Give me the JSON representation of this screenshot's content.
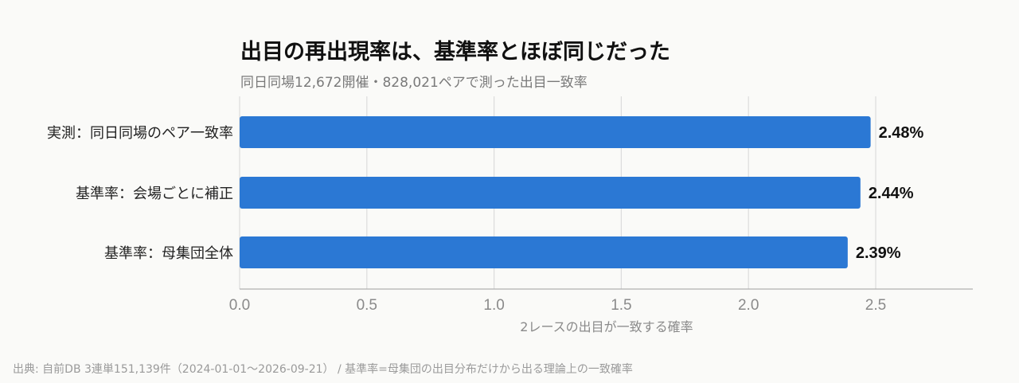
{
  "colors": {
    "bar": "#2b78d4",
    "background": "#fafaf8",
    "grid": "#dcdcdc"
  },
  "source": "出典: 自前DB 3連単151,139件（2024-01-01〜2026-09-21） / 基準率=母集団の出目分布だけから出る理論上の一致確率",
  "chart_data": {
    "type": "bar",
    "orientation": "horizontal",
    "title": "出目の再出現率は、基準率とほぼ同じだった",
    "subtitle": "同日同場12,672開催・828,021ペアで測った出目一致率",
    "xlabel": "2レースの出目が一致する確率",
    "ylabel": "",
    "categories": [
      "実測：同日同場のペア一致率",
      "基準率：会場ごとに補正",
      "基準率：母集団全体"
    ],
    "values": [
      2.48,
      2.44,
      2.39
    ],
    "value_labels": [
      "2.48%",
      "2.44%",
      "2.39%"
    ],
    "xlim": [
      0,
      2.75
    ],
    "xticks": [
      0,
      0.5,
      1.0,
      1.5,
      2.0,
      2.5
    ],
    "xtick_labels": [
      "0.0",
      "0.5",
      "1.0",
      "1.5",
      "2.0",
      "2.5"
    ],
    "grid": true,
    "legend": "none"
  }
}
